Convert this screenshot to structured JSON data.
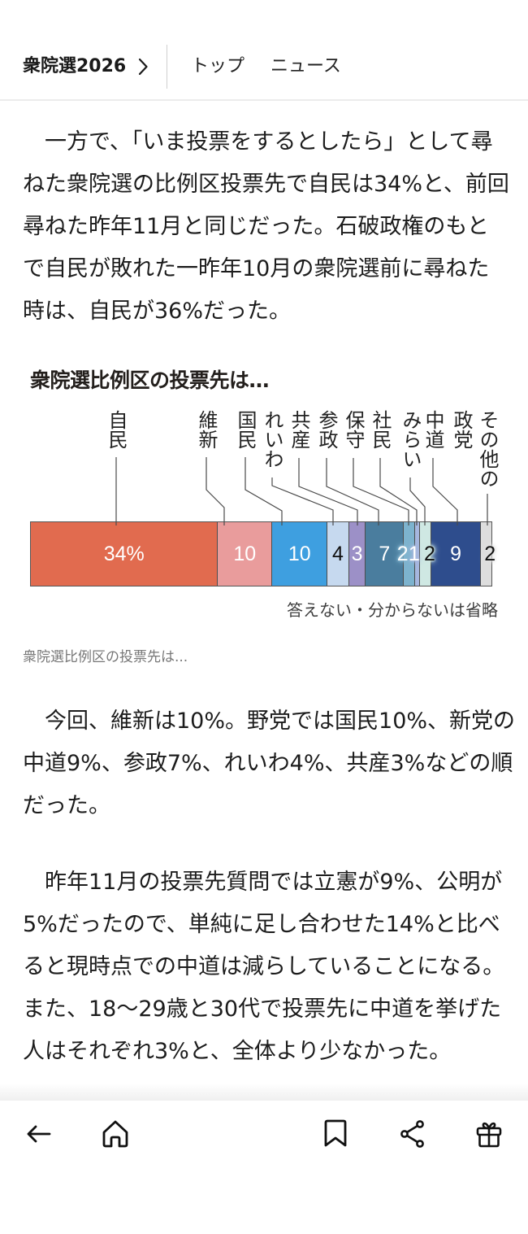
{
  "header": {
    "section_title": "衆院選2026",
    "nav": [
      {
        "label": "トップ"
      },
      {
        "label": "ニュース"
      }
    ]
  },
  "article": {
    "paragraphs": [
      {
        "lines": [
          "　一方で、「いま投票をするとしたら」として尋",
          "ねた衆院選の比例区投票先で自民は34%と、前回",
          "尋ねた昨年11月と同じだった。石破政権のもと",
          "で自民が敗れた一昨年10月の衆院選前に尋ねた",
          "時は、自民が36%だった。"
        ]
      },
      {
        "lines": [
          "　今回、維新は10%。野党では国民10%、新党の",
          "中道9%、参政7%、れいわ4%、共産3%などの順",
          "だった。"
        ]
      },
      {
        "lines": [
          "　昨年11月の投票先質問では立憲が9%、公明が",
          "5%だったので、単純に足し合わせた14%と比べ",
          "ると現時点での中道は減らしていることになる。",
          "また、18〜29歳と30代で投票先に中道を挙げた",
          "人はそれぞれ3%と、全体より少なかった。"
        ]
      }
    ]
  },
  "figure": {
    "caption": "衆院選比例区の投票先は..."
  },
  "chart_data": {
    "type": "bar",
    "orientation": "horizontal",
    "stacked": true,
    "title": "衆院選比例区の投票先は…",
    "xlabel": "",
    "ylabel": "",
    "unit": "%",
    "categories": [
      "自民",
      "維新",
      "国民",
      "れいわ",
      "共産",
      "参政",
      "保守",
      "社民",
      "みらい",
      "中道",
      "その他の政党"
    ],
    "values": [
      34,
      10,
      10,
      4,
      3,
      7,
      2,
      1,
      2,
      9,
      2
    ],
    "value_labels": [
      "34%",
      "10",
      "10",
      "4",
      "3",
      "7",
      "2",
      "1",
      "2",
      "9",
      "2"
    ],
    "display_labels": [
      [
        "自民"
      ],
      [
        "維新"
      ],
      [
        "国民"
      ],
      [
        "れいわ"
      ],
      [
        "共産"
      ],
      [
        "参政"
      ],
      [
        "保守"
      ],
      [
        "社民"
      ],
      [
        "みらい"
      ],
      [
        "中道"
      ],
      [
        "その他の",
        "政党"
      ]
    ],
    "colors": [
      "#E16B4F",
      "#E99C9C",
      "#3E9FE0",
      "#C6D9EF",
      "#9C90C7",
      "#4A7D9E",
      "#7DB3CE",
      "#A6B7DF",
      "#CFE8E3",
      "#2E4D8D",
      "#DDDDDD"
    ],
    "label_text_colors": [
      "#FFFFFF",
      "#FFFFFF",
      "#FFFFFF",
      "#111111",
      "#FFFFFF",
      "#FFFFFF",
      "#FFFFFF",
      "#FFFFFF",
      "#111111",
      "#FFFFFF",
      "#111111"
    ],
    "note": "答えない・分からないは省略",
    "legend": "none",
    "grid": false
  },
  "bottom_nav": {
    "items": [
      {
        "icon": "back-arrow-icon"
      },
      {
        "icon": "home-icon"
      },
      {
        "icon": "bookmark-icon"
      },
      {
        "icon": "share-icon"
      },
      {
        "icon": "gift-icon"
      }
    ]
  }
}
